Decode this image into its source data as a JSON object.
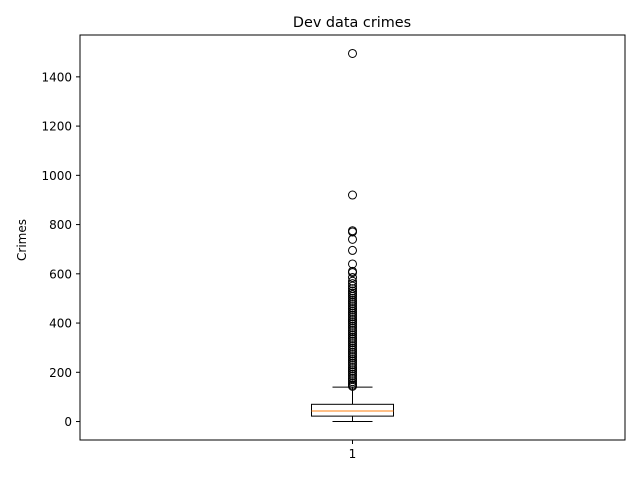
{
  "chart_data": {
    "type": "box",
    "title": "Dev data crimes",
    "xlabel": "",
    "ylabel": "Crimes",
    "categories": [
      "1"
    ],
    "ylim": [
      -75,
      1570
    ],
    "yticks": [
      0,
      200,
      400,
      600,
      800,
      1000,
      1200,
      1400
    ],
    "grid": false,
    "box": {
      "whisker_low": 0,
      "q1": 22,
      "median": 43,
      "q3": 70,
      "whisker_high": 140
    },
    "outliers": [
      1495,
      920,
      775,
      770,
      740,
      695,
      640,
      610,
      605,
      585,
      570,
      560,
      550,
      540,
      530,
      522,
      515,
      508,
      500,
      492,
      485,
      478,
      470,
      462,
      455,
      447,
      440,
      432,
      425,
      417,
      410,
      402,
      395,
      387,
      380,
      372,
      365,
      357,
      350,
      342,
      335,
      327,
      320,
      312,
      305,
      297,
      290,
      282,
      275,
      267,
      260,
      252,
      245,
      237,
      230,
      222,
      215,
      207,
      200,
      192,
      185,
      177,
      170,
      162,
      155,
      148,
      143
    ],
    "colors": {
      "box": "#000000",
      "median": "#ff7f0e",
      "outlier": "#000000"
    }
  }
}
